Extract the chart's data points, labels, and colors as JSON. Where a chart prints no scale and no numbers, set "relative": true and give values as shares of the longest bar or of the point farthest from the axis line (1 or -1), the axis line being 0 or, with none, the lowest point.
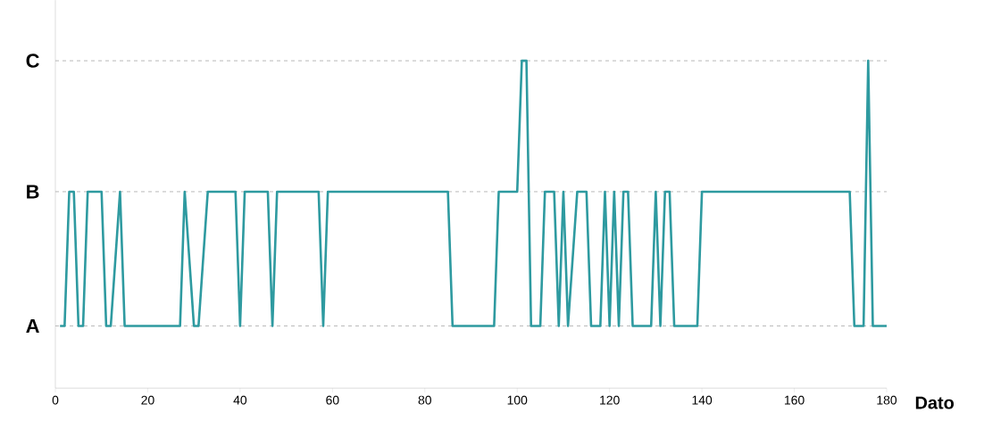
{
  "chart_data": {
    "type": "line",
    "xlabel": "Dato",
    "color": "#2e9aa0",
    "relative": true,
    "x": [
      1,
      2,
      3,
      4,
      5,
      6,
      7,
      10,
      11,
      12,
      14,
      15,
      27,
      28,
      30,
      31,
      33,
      39,
      40,
      41,
      46,
      47,
      48,
      57,
      58,
      59,
      85,
      86,
      95,
      96,
      100,
      101,
      102,
      103,
      105,
      106,
      108,
      109,
      110,
      111,
      113,
      115,
      116,
      118,
      119,
      120,
      121,
      122,
      123,
      124,
      125,
      129,
      130,
      131,
      132,
      133,
      134,
      139,
      140,
      172,
      173,
      175,
      176,
      177,
      180
    ],
    "values": [
      0.19,
      0.19,
      0.6,
      0.6,
      0.19,
      0.19,
      0.6,
      0.6,
      0.19,
      0.19,
      0.6,
      0.19,
      0.19,
      0.6,
      0.19,
      0.19,
      0.6,
      0.6,
      0.19,
      0.6,
      0.6,
      0.19,
      0.6,
      0.6,
      0.19,
      0.6,
      0.6,
      0.19,
      0.19,
      0.6,
      0.6,
      1,
      1,
      0.19,
      0.19,
      0.6,
      0.6,
      0.19,
      0.6,
      0.19,
      0.6,
      0.6,
      0.19,
      0.19,
      0.6,
      0.19,
      0.6,
      0.19,
      0.6,
      0.6,
      0.19,
      0.19,
      0.6,
      0.19,
      0.6,
      0.6,
      0.19,
      0.19,
      0.6,
      0.6,
      0.19,
      0.19,
      1,
      0.19,
      0.19
    ],
    "xlim": [
      0,
      180
    ],
    "xticks": [
      0,
      20,
      40,
      60,
      80,
      100,
      120,
      140,
      160,
      180
    ],
    "ref_lines": [
      {
        "axis": "y",
        "value": 0.19,
        "label": "A",
        "color": "#a6a6a6",
        "line_style": "dashed"
      },
      {
        "axis": "y",
        "value": 0.6,
        "label": "B",
        "color": "#a6a6a6",
        "line_style": "dashed"
      },
      {
        "axis": "y",
        "value": 1,
        "label": "C",
        "color": "#a6a6a6",
        "line_style": "dashed"
      }
    ]
  }
}
